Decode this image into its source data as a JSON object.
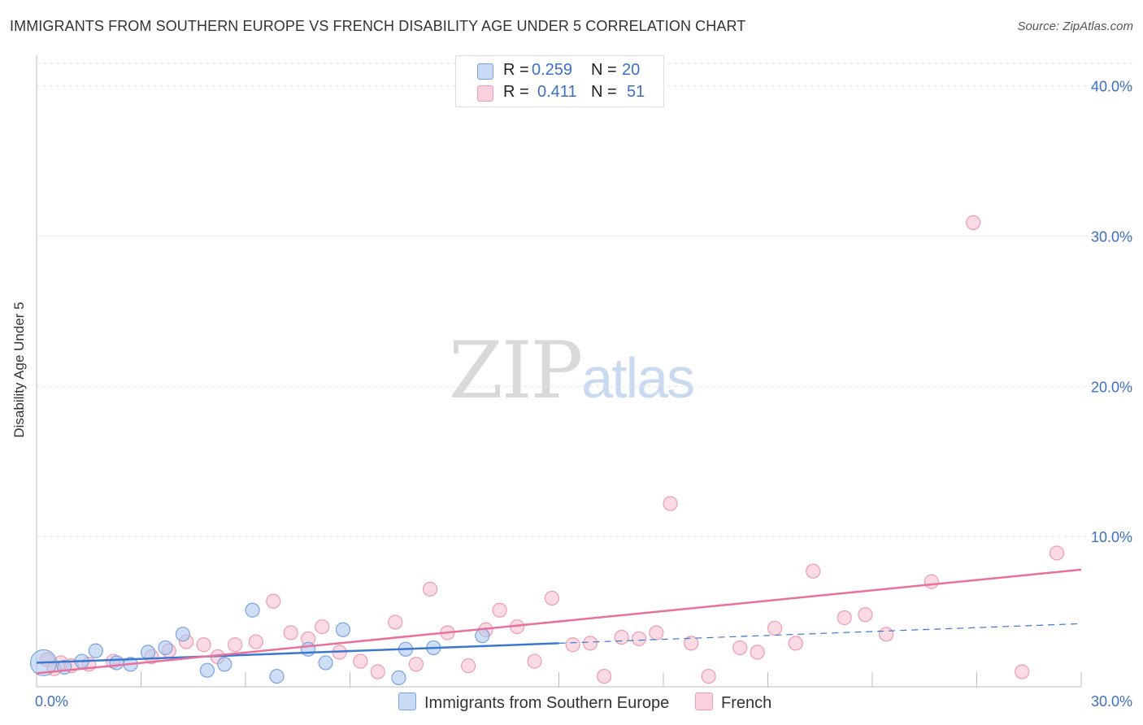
{
  "header": {
    "title": "IMMIGRANTS FROM SOUTHERN EUROPE VS FRENCH DISABILITY AGE UNDER 5 CORRELATION CHART",
    "source": "Source: ZipAtlas.com"
  },
  "watermark": {
    "zip": "ZIP",
    "atlas": "atlas"
  },
  "legend": {
    "series1": {
      "r_label": "R =",
      "r_value": "0.259",
      "n_label": "N =",
      "n_value": "20"
    },
    "series2": {
      "r_label": "R =",
      "r_value": "0.411",
      "n_label": "N =",
      "n_value": "51"
    }
  },
  "bottom_legend": {
    "series1_label": "Immigrants from Southern Europe",
    "series2_label": "French"
  },
  "colors": {
    "blue_fill": "#aec8f0",
    "blue_stroke": "#7aa3de",
    "blue_line": "#3a78d0",
    "pink_fill": "#f7c3d2",
    "pink_stroke": "#ee9ab4",
    "pink_line": "#e8709a",
    "tick_text": "#3d6fc4",
    "grid": "#e2e2e2"
  },
  "chart_data": {
    "type": "scatter",
    "title": "IMMIGRANTS FROM SOUTHERN EUROPE VS FRENCH DISABILITY AGE UNDER 5 CORRELATION CHART",
    "xlabel": "",
    "ylabel": "Disability Age Under 5",
    "xlim": [
      0,
      30
    ],
    "ylim": [
      0,
      41.5
    ],
    "y_ticks": [
      10,
      20,
      30,
      40
    ],
    "y_tick_labels": [
      "10.0%",
      "20.0%",
      "30.0%",
      "40.0%"
    ],
    "x_tick_labels": [
      "0.0%",
      "30.0%"
    ],
    "x_minor_ticks": [
      3,
      6,
      9,
      15,
      18,
      21,
      24,
      27,
      30
    ],
    "grid": true,
    "series": [
      {
        "name": "Immigrants from Southern Europe",
        "color": "#aec8f0",
        "points": [
          {
            "x": 0.2,
            "y": 1.6,
            "big": true
          },
          {
            "x": 0.8,
            "y": 1.3
          },
          {
            "x": 1.3,
            "y": 1.7
          },
          {
            "x": 1.7,
            "y": 2.4
          },
          {
            "x": 2.3,
            "y": 1.6
          },
          {
            "x": 2.7,
            "y": 1.5
          },
          {
            "x": 3.2,
            "y": 2.3
          },
          {
            "x": 3.7,
            "y": 2.6
          },
          {
            "x": 4.2,
            "y": 3.5
          },
          {
            "x": 4.9,
            "y": 1.1
          },
          {
            "x": 5.4,
            "y": 1.5
          },
          {
            "x": 6.2,
            "y": 5.1
          },
          {
            "x": 6.9,
            "y": 0.7
          },
          {
            "x": 7.8,
            "y": 2.5
          },
          {
            "x": 8.3,
            "y": 1.6
          },
          {
            "x": 8.8,
            "y": 3.8
          },
          {
            "x": 10.4,
            "y": 0.6
          },
          {
            "x": 10.6,
            "y": 2.5
          },
          {
            "x": 11.4,
            "y": 2.6
          },
          {
            "x": 12.8,
            "y": 3.4
          }
        ],
        "trend": {
          "x0": 0,
          "y0": 1.6,
          "x1": 15,
          "y1": 2.9,
          "dash_to_x": 30,
          "dash_to_y": 4.2
        }
      },
      {
        "name": "French",
        "color": "#f7c3d2",
        "points": [
          {
            "x": 0.3,
            "y": 1.8
          },
          {
            "x": 0.7,
            "y": 1.6
          },
          {
            "x": 1.0,
            "y": 1.4
          },
          {
            "x": 1.5,
            "y": 1.5
          },
          {
            "x": 2.2,
            "y": 1.7
          },
          {
            "x": 3.3,
            "y": 2.0
          },
          {
            "x": 3.8,
            "y": 2.4
          },
          {
            "x": 4.3,
            "y": 3.0
          },
          {
            "x": 4.8,
            "y": 2.8
          },
          {
            "x": 5.2,
            "y": 2.0
          },
          {
            "x": 5.7,
            "y": 2.8
          },
          {
            "x": 6.3,
            "y": 3.0
          },
          {
            "x": 6.8,
            "y": 5.7
          },
          {
            "x": 7.3,
            "y": 3.6
          },
          {
            "x": 7.8,
            "y": 3.2
          },
          {
            "x": 8.2,
            "y": 4.0
          },
          {
            "x": 8.7,
            "y": 2.3
          },
          {
            "x": 9.3,
            "y": 1.7
          },
          {
            "x": 9.8,
            "y": 1.0
          },
          {
            "x": 10.3,
            "y": 4.3
          },
          {
            "x": 10.9,
            "y": 1.5
          },
          {
            "x": 11.3,
            "y": 6.5
          },
          {
            "x": 11.8,
            "y": 3.6
          },
          {
            "x": 12.4,
            "y": 1.4
          },
          {
            "x": 12.9,
            "y": 3.8
          },
          {
            "x": 13.3,
            "y": 5.1
          },
          {
            "x": 13.8,
            "y": 4.0
          },
          {
            "x": 14.3,
            "y": 1.7
          },
          {
            "x": 14.8,
            "y": 5.9
          },
          {
            "x": 15.4,
            "y": 2.8
          },
          {
            "x": 15.9,
            "y": 2.9
          },
          {
            "x": 16.3,
            "y": 0.7
          },
          {
            "x": 16.8,
            "y": 3.3
          },
          {
            "x": 17.3,
            "y": 3.2
          },
          {
            "x": 17.8,
            "y": 3.6
          },
          {
            "x": 18.2,
            "y": 12.2
          },
          {
            "x": 18.8,
            "y": 2.9
          },
          {
            "x": 19.3,
            "y": 0.7
          },
          {
            "x": 20.2,
            "y": 2.6
          },
          {
            "x": 20.7,
            "y": 2.3
          },
          {
            "x": 21.2,
            "y": 3.9
          },
          {
            "x": 21.8,
            "y": 2.9
          },
          {
            "x": 22.3,
            "y": 7.7
          },
          {
            "x": 23.2,
            "y": 4.6
          },
          {
            "x": 23.8,
            "y": 4.8
          },
          {
            "x": 24.4,
            "y": 3.5
          },
          {
            "x": 25.7,
            "y": 7.0
          },
          {
            "x": 26.9,
            "y": 30.9
          },
          {
            "x": 28.3,
            "y": 1.0
          },
          {
            "x": 29.3,
            "y": 8.9
          },
          {
            "x": 0.5,
            "y": 1.2
          }
        ],
        "trend": {
          "x0": 0,
          "y0": 0.9,
          "x1": 30,
          "y1": 7.8
        }
      }
    ]
  }
}
